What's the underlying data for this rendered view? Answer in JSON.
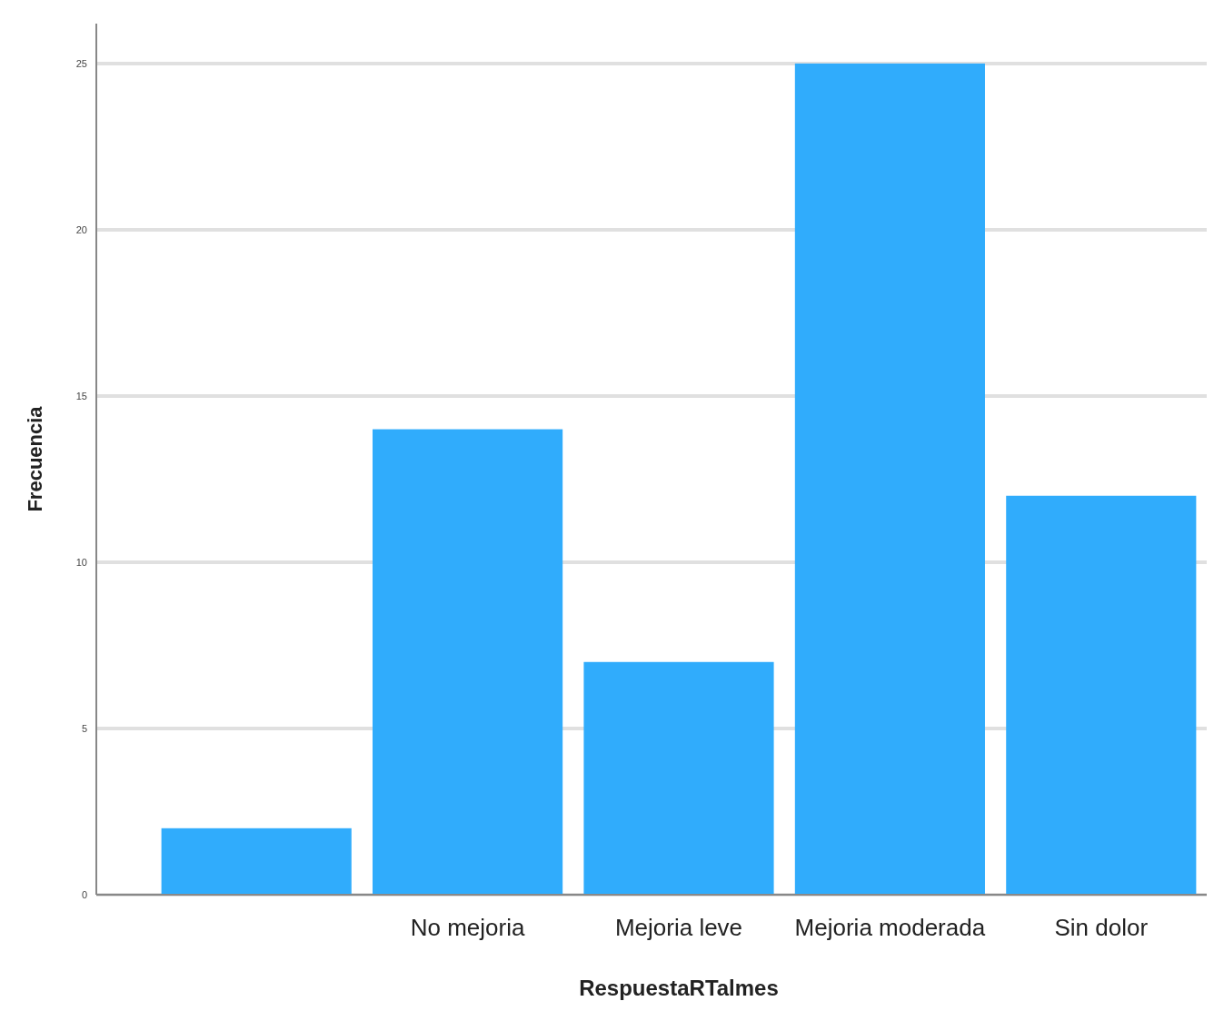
{
  "chart_data": {
    "type": "bar",
    "xlabel": "RespuestaRTalmes",
    "ylabel": "Frecuencia",
    "categories": [
      null,
      "No mejoria",
      "Mejoria leve",
      "Mejoria moderada",
      "Sin dolor"
    ],
    "values": [
      2,
      14,
      7,
      25,
      12
    ],
    "color": "#30acfc",
    "ylim": [
      0,
      26.2
    ],
    "yticks": [
      0,
      5,
      10,
      15,
      20,
      25
    ],
    "grid": "y"
  }
}
